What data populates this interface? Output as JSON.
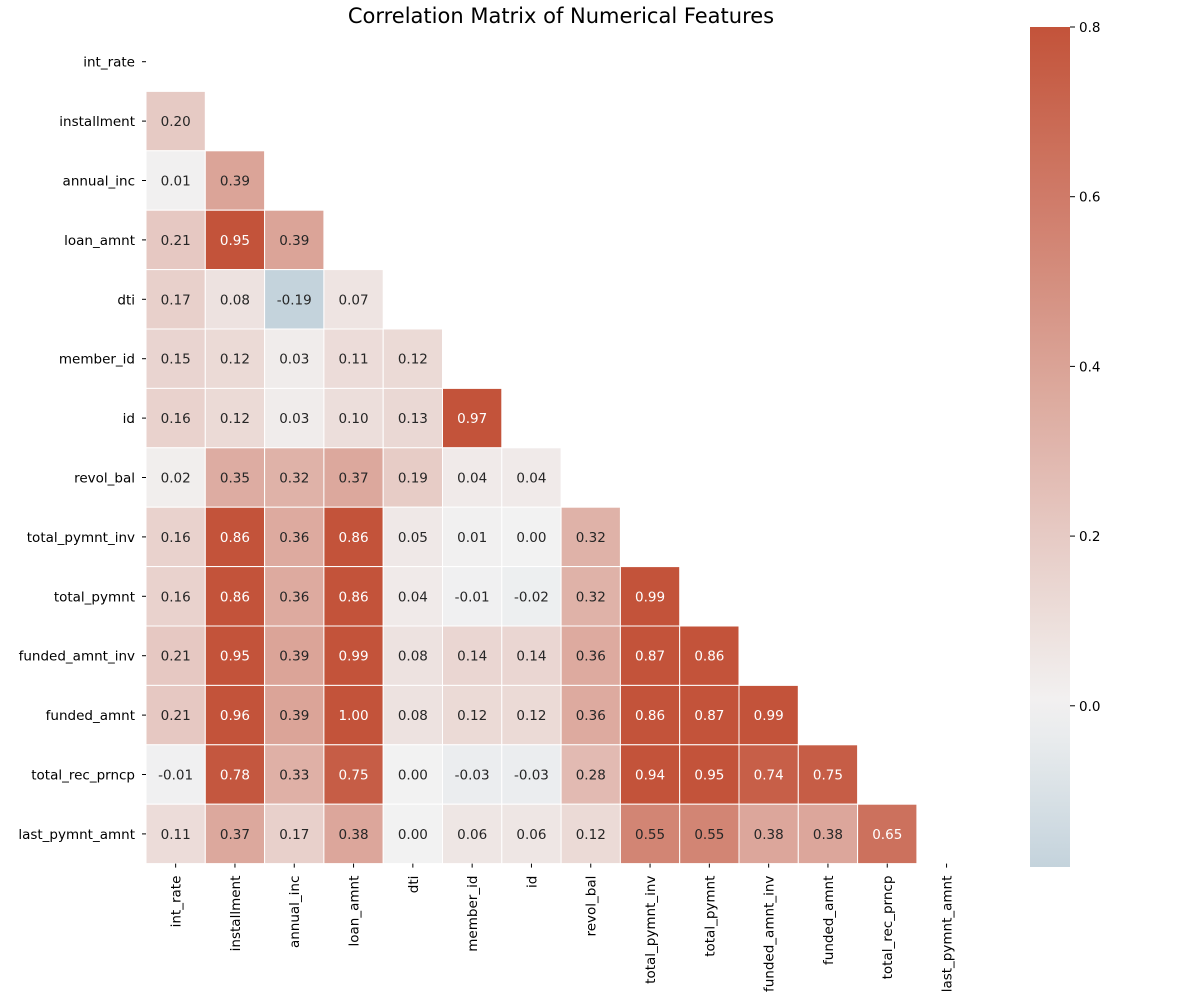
{
  "chart_data": {
    "type": "heatmap",
    "title": "Correlation Matrix of Numerical Features",
    "mask": "upper-triangle-including-diagonal",
    "labels": [
      "int_rate",
      "installment",
      "annual_inc",
      "loan_amnt",
      "dti",
      "member_id",
      "id",
      "revol_bal",
      "total_pymnt_inv",
      "total_pymnt",
      "funded_amnt_inv",
      "funded_amnt",
      "total_rec_prncp",
      "last_pymnt_amnt"
    ],
    "matrix": [
      [
        null,
        null,
        null,
        null,
        null,
        null,
        null,
        null,
        null,
        null,
        null,
        null,
        null,
        null
      ],
      [
        0.2,
        null,
        null,
        null,
        null,
        null,
        null,
        null,
        null,
        null,
        null,
        null,
        null,
        null
      ],
      [
        0.01,
        0.39,
        null,
        null,
        null,
        null,
        null,
        null,
        null,
        null,
        null,
        null,
        null,
        null
      ],
      [
        0.21,
        0.95,
        0.39,
        null,
        null,
        null,
        null,
        null,
        null,
        null,
        null,
        null,
        null,
        null
      ],
      [
        0.17,
        0.08,
        -0.19,
        0.07,
        null,
        null,
        null,
        null,
        null,
        null,
        null,
        null,
        null,
        null
      ],
      [
        0.15,
        0.12,
        0.03,
        0.11,
        0.12,
        null,
        null,
        null,
        null,
        null,
        null,
        null,
        null,
        null
      ],
      [
        0.16,
        0.12,
        0.03,
        0.1,
        0.13,
        0.97,
        null,
        null,
        null,
        null,
        null,
        null,
        null,
        null
      ],
      [
        0.02,
        0.35,
        0.32,
        0.37,
        0.19,
        0.04,
        0.04,
        null,
        null,
        null,
        null,
        null,
        null,
        null
      ],
      [
        0.16,
        0.86,
        0.36,
        0.86,
        0.05,
        0.01,
        0.0,
        0.32,
        null,
        null,
        null,
        null,
        null,
        null
      ],
      [
        0.16,
        0.86,
        0.36,
        0.86,
        0.04,
        -0.01,
        -0.02,
        0.32,
        0.99,
        null,
        null,
        null,
        null,
        null
      ],
      [
        0.21,
        0.95,
        0.39,
        0.99,
        0.08,
        0.14,
        0.14,
        0.36,
        0.87,
        0.86,
        null,
        null,
        null,
        null
      ],
      [
        0.21,
        0.96,
        0.39,
        1.0,
        0.08,
        0.12,
        0.12,
        0.36,
        0.86,
        0.87,
        0.99,
        null,
        null,
        null
      ],
      [
        -0.01,
        0.78,
        0.33,
        0.75,
        0.0,
        -0.03,
        -0.03,
        0.28,
        0.94,
        0.95,
        0.74,
        0.75,
        null,
        null
      ],
      [
        0.11,
        0.37,
        0.17,
        0.38,
        -0.0,
        0.06,
        0.06,
        0.12,
        0.55,
        0.55,
        0.38,
        0.38,
        0.65,
        null
      ]
    ],
    "value_format": "2 decimals",
    "color_scale": {
      "vmin": -0.19,
      "vmax": 0.8,
      "center": 0.0,
      "negative_color": "#c4d3dc",
      "center_color": "#f2f2f2",
      "positive_color": "#c3533a",
      "ticks": [
        "0.0",
        "0.2",
        "0.4",
        "0.6",
        "0.8"
      ],
      "tick_values": [
        0.0,
        0.2,
        0.4,
        0.6,
        0.8
      ]
    }
  }
}
